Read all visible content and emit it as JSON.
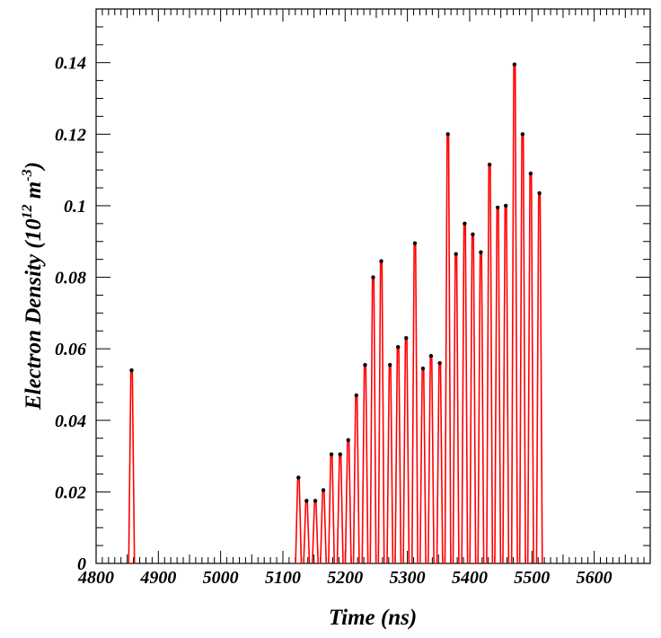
{
  "chart_data": {
    "type": "line",
    "title": "",
    "xlabel": "Time (ns)",
    "ylabel_main": "Electron Density (10",
    "ylabel_exp1": "12",
    "ylabel_mid": " m",
    "ylabel_exp2": "-3",
    "ylabel_end": ")",
    "xlim": [
      4800,
      5690
    ],
    "ylim": [
      0,
      0.155
    ],
    "x_ticks": [
      4800,
      4900,
      5000,
      5100,
      5200,
      5300,
      5400,
      5500,
      5600
    ],
    "y_ticks": [
      0,
      0.02,
      0.04,
      0.06,
      0.08,
      0.1,
      0.12,
      0.14
    ],
    "x_tick_labels": [
      "4800",
      "4900",
      "5000",
      "5100",
      "5200",
      "5300",
      "5400",
      "5500",
      "5600"
    ],
    "y_tick_labels": [
      "0",
      "0.02",
      "0.04",
      "0.06",
      "0.08",
      "0.1",
      "0.12",
      "0.14"
    ],
    "grid": false,
    "line_color": "#ff0000",
    "marker_color": "#000000",
    "peaks": [
      {
        "x": 4857,
        "y": 0.054
      },
      {
        "x": 5125,
        "y": 0.024
      },
      {
        "x": 5138,
        "y": 0.0175
      },
      {
        "x": 5152,
        "y": 0.0175
      },
      {
        "x": 5165,
        "y": 0.0205
      },
      {
        "x": 5178,
        "y": 0.0305
      },
      {
        "x": 5192,
        "y": 0.0305
      },
      {
        "x": 5205,
        "y": 0.0345
      },
      {
        "x": 5218,
        "y": 0.047
      },
      {
        "x": 5232,
        "y": 0.0555
      },
      {
        "x": 5245,
        "y": 0.08
      },
      {
        "x": 5258,
        "y": 0.0845
      },
      {
        "x": 5272,
        "y": 0.0555
      },
      {
        "x": 5285,
        "y": 0.0605
      },
      {
        "x": 5298,
        "y": 0.063
      },
      {
        "x": 5312,
        "y": 0.0895
      },
      {
        "x": 5325,
        "y": 0.0545
      },
      {
        "x": 5338,
        "y": 0.058
      },
      {
        "x": 5352,
        "y": 0.056
      },
      {
        "x": 5365,
        "y": 0.12
      },
      {
        "x": 5378,
        "y": 0.0865
      },
      {
        "x": 5392,
        "y": 0.095
      },
      {
        "x": 5405,
        "y": 0.092
      },
      {
        "x": 5418,
        "y": 0.087
      },
      {
        "x": 5432,
        "y": 0.1115
      },
      {
        "x": 5445,
        "y": 0.0995
      },
      {
        "x": 5458,
        "y": 0.1
      },
      {
        "x": 5472,
        "y": 0.1395
      },
      {
        "x": 5485,
        "y": 0.12
      },
      {
        "x": 5498,
        "y": 0.109
      },
      {
        "x": 5512,
        "y": 0.1035
      }
    ]
  }
}
